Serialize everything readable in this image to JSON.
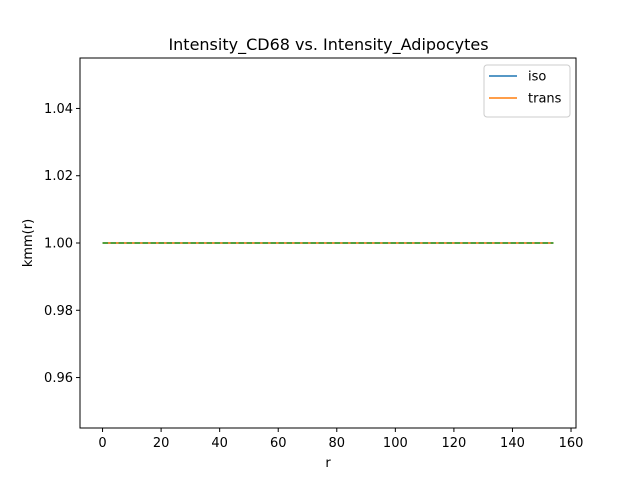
{
  "chart_data": {
    "type": "line",
    "title": "Intensity_CD68 vs. Intensity_Adipocytes",
    "xlabel": "r",
    "ylabel": "kmm(r)",
    "xlim": [
      -7.7,
      161.7
    ],
    "ylim": [
      0.945,
      1.055
    ],
    "xticks": [
      0,
      20,
      40,
      60,
      80,
      100,
      120,
      140,
      160
    ],
    "yticks": [
      0.96,
      0.98,
      1.0,
      1.02,
      1.04
    ],
    "xtick_labels": [
      "0",
      "20",
      "40",
      "60",
      "80",
      "100",
      "120",
      "140",
      "160"
    ],
    "ytick_labels": [
      "0.96",
      "0.98",
      "1.00",
      "1.02",
      "1.04"
    ],
    "grid": false,
    "legend_position": "top-right",
    "series": [
      {
        "name": "iso",
        "color": "#1f77b4",
        "style": "solid",
        "x": [
          0,
          154
        ],
        "y": [
          1.0,
          1.0
        ]
      },
      {
        "name": "trans",
        "color": "#ff7f0e",
        "style": "solid",
        "x": [
          0,
          154
        ],
        "y": [
          1.0,
          1.0
        ]
      },
      {
        "color": "#2ca02c",
        "style": "dashed",
        "x": [
          0,
          154
        ],
        "y": [
          1.0,
          1.0
        ]
      }
    ]
  }
}
